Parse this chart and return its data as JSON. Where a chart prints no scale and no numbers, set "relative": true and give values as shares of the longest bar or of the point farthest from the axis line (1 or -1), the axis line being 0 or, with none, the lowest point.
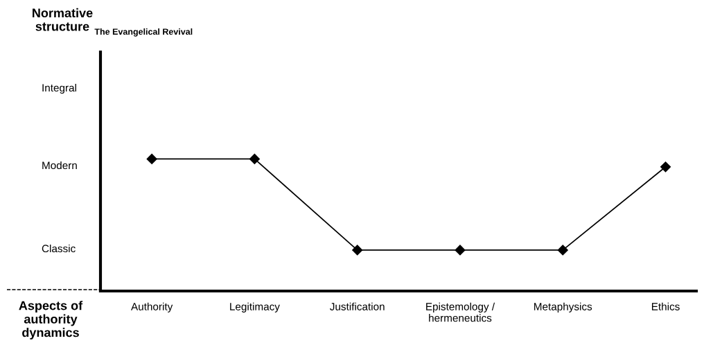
{
  "chart_data": {
    "type": "line",
    "title": "The Evangelical Revival",
    "xlabel": "Aspects of authority dynamics",
    "categories": [
      "Authority",
      "Legitimacy",
      "Justification",
      "Epistemology /\nhermeneutics",
      "Metaphysics",
      "Ethics"
    ],
    "relative": true,
    "series": [
      {
        "color": "#000000",
        "values": [
          1,
          1,
          0.31,
          0.31,
          0.31,
          0.94
        ]
      }
    ],
    "annotations": [
      "Normative structure",
      "Integral",
      "Modern",
      "Classic"
    ],
    "grid": false,
    "marker": "diamond",
    "line_style": "solid"
  }
}
